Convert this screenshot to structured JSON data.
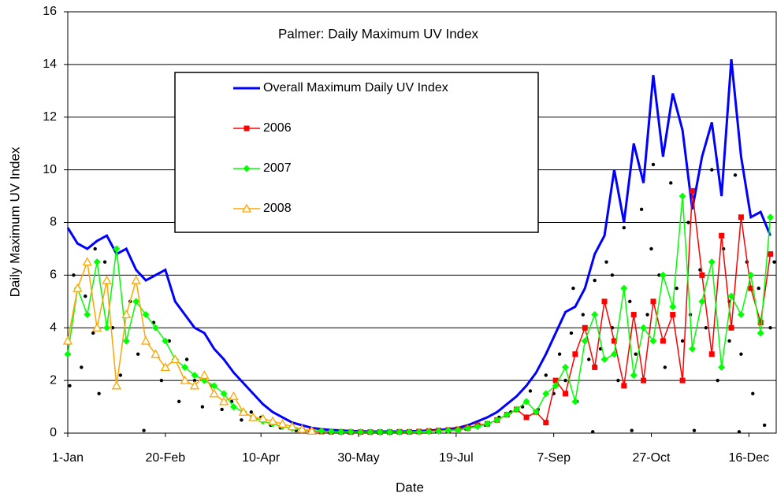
{
  "chart_data": {
    "type": "line",
    "title": "Palmer: Daily Maximum UV Index",
    "xlabel": "Date",
    "ylabel": "Daily Maximum UV Index",
    "xlim": [
      1,
      364
    ],
    "ylim": [
      0,
      16
    ],
    "xticks": [
      {
        "value": 1,
        "label": "1-Jan"
      },
      {
        "value": 51,
        "label": "20-Feb"
      },
      {
        "value": 100,
        "label": "10-Apr"
      },
      {
        "value": 150,
        "label": "30-May"
      },
      {
        "value": 200,
        "label": "19-Jul"
      },
      {
        "value": 250,
        "label": "7-Sep"
      },
      {
        "value": 300,
        "label": "27-Oct"
      },
      {
        "value": 350,
        "label": "16-Dec"
      }
    ],
    "yticks": [
      0,
      2,
      4,
      6,
      8,
      10,
      12,
      14,
      16
    ],
    "grid": true,
    "x": [
      1,
      6,
      11,
      16,
      21,
      26,
      31,
      36,
      41,
      46,
      51,
      56,
      61,
      66,
      71,
      76,
      81,
      86,
      91,
      96,
      101,
      106,
      111,
      116,
      121,
      126,
      131,
      136,
      141,
      146,
      151,
      156,
      161,
      166,
      171,
      176,
      181,
      186,
      191,
      196,
      201,
      206,
      211,
      216,
      221,
      226,
      231,
      236,
      241,
      246,
      251,
      256,
      261,
      266,
      271,
      276,
      281,
      286,
      291,
      296,
      301,
      306,
      311,
      316,
      321,
      326,
      331,
      336,
      341,
      346,
      351,
      356,
      361
    ],
    "series": [
      {
        "name": "Overall Maximum Daily UV Index",
        "color": "#0000ff",
        "marker": "none",
        "values": [
          7.8,
          7.2,
          7.0,
          7.3,
          7.5,
          6.8,
          7.0,
          6.2,
          5.8,
          6.0,
          6.2,
          5.0,
          4.5,
          4.0,
          3.8,
          3.2,
          2.8,
          2.3,
          1.9,
          1.5,
          1.1,
          0.8,
          0.6,
          0.4,
          0.3,
          0.2,
          0.15,
          0.12,
          0.1,
          0.08,
          0.07,
          0.06,
          0.06,
          0.06,
          0.06,
          0.07,
          0.08,
          0.1,
          0.12,
          0.15,
          0.2,
          0.3,
          0.45,
          0.6,
          0.8,
          1.1,
          1.4,
          1.8,
          2.3,
          3.0,
          3.8,
          4.6,
          4.8,
          5.5,
          6.8,
          7.5,
          10.0,
          8.0,
          11.0,
          9.5,
          13.6,
          10.5,
          12.9,
          11.5,
          8.5,
          10.5,
          11.8,
          9.0,
          14.2,
          10.5,
          8.2,
          8.4,
          7.5
        ]
      },
      {
        "name": "2006",
        "color": "#ff0000",
        "marker": "square",
        "values": [
          null,
          null,
          null,
          null,
          null,
          null,
          null,
          null,
          null,
          null,
          null,
          null,
          null,
          null,
          null,
          null,
          null,
          null,
          null,
          null,
          null,
          null,
          null,
          null,
          0.1,
          0.08,
          0.06,
          0.05,
          0.05,
          0.04,
          0.04,
          0.04,
          0.04,
          0.04,
          0.05,
          0.05,
          0.06,
          0.08,
          0.1,
          0.12,
          0.15,
          0.2,
          0.3,
          0.35,
          0.5,
          0.7,
          0.9,
          0.6,
          0.8,
          0.4,
          2.0,
          1.5,
          3.0,
          4.0,
          2.5,
          5.0,
          3.5,
          1.8,
          4.5,
          2.0,
          5.0,
          3.5,
          4.5,
          2.0,
          9.2,
          6.0,
          3.0,
          7.5,
          4.0,
          8.2,
          5.5,
          4.2,
          6.8
        ]
      },
      {
        "name": "2007",
        "color": "#00ff00",
        "marker": "diamond",
        "values": [
          3.0,
          5.5,
          4.5,
          6.5,
          4.0,
          7.0,
          3.5,
          5.0,
          4.5,
          4.0,
          3.5,
          2.8,
          2.5,
          2.2,
          2.0,
          1.8,
          1.5,
          1.0,
          0.8,
          0.6,
          0.45,
          0.35,
          0.25,
          0.18,
          0.12,
          0.1,
          0.08,
          0.06,
          0.05,
          0.05,
          0.04,
          0.04,
          0.04,
          0.04,
          0.04,
          0.05,
          0.05,
          0.06,
          0.08,
          0.1,
          0.12,
          0.18,
          0.25,
          0.35,
          0.5,
          0.7,
          0.9,
          1.2,
          0.8,
          1.5,
          1.8,
          2.5,
          1.2,
          3.5,
          4.5,
          2.8,
          3.0,
          5.5,
          2.2,
          4.0,
          3.5,
          6.0,
          4.8,
          9.0,
          3.2,
          5.0,
          6.5,
          2.5,
          5.2,
          4.5,
          6.0,
          3.8,
          8.2
        ]
      },
      {
        "name": "2008",
        "color": "#ffa500",
        "marker": "triangle",
        "values": [
          3.5,
          5.5,
          6.5,
          4.0,
          5.8,
          1.8,
          4.5,
          5.8,
          3.5,
          3.0,
          2.5,
          2.8,
          2.0,
          1.8,
          2.2,
          1.5,
          1.2,
          1.4,
          0.8,
          0.6,
          0.55,
          0.45,
          0.35,
          0.25,
          0.15,
          0.08,
          null,
          null,
          null,
          null,
          null,
          null,
          null,
          null,
          null,
          null,
          null,
          null,
          null,
          null,
          null,
          null,
          null,
          null,
          null,
          null,
          null,
          null,
          null,
          null,
          null,
          null,
          null,
          null,
          null,
          null,
          null,
          null,
          null,
          null,
          null,
          null,
          null,
          null,
          null,
          null,
          null,
          null,
          null,
          null,
          null,
          null,
          null
        ]
      },
      {
        "color": "#000000",
        "marker": "dot",
        "x": [
          2,
          4,
          8,
          10,
          14,
          17,
          20,
          24,
          28,
          33,
          37,
          40,
          45,
          49,
          53,
          58,
          62,
          66,
          70,
          75,
          80,
          85,
          90,
          95,
          100,
          105,
          110,
          118,
          125,
          135,
          145,
          160,
          175,
          190,
          205,
          215,
          222,
          228,
          234,
          238,
          242,
          246,
          250,
          253,
          256,
          259,
          262,
          265,
          268,
          271,
          274,
          277,
          280,
          283,
          286,
          289,
          292,
          295,
          298,
          301,
          304,
          307,
          310,
          313,
          316,
          319,
          322,
          325,
          328,
          331,
          334,
          337,
          340,
          343,
          346,
          349,
          352,
          355,
          358,
          361,
          363,
          270,
          290,
          345,
          300,
          320,
          340,
          260,
          280,
          15
        ],
        "values": [
          1.8,
          6.0,
          2.5,
          5.2,
          3.8,
          1.5,
          6.5,
          4.0,
          2.2,
          5.0,
          3.0,
          0.1,
          4.2,
          2.0,
          3.5,
          1.2,
          2.8,
          2.0,
          1.0,
          1.8,
          0.9,
          1.2,
          0.5,
          0.8,
          0.6,
          0.3,
          0.2,
          0.1,
          0.05,
          0.03,
          0.02,
          0.02,
          0.03,
          0.05,
          0.15,
          0.3,
          0.6,
          0.8,
          1.0,
          1.6,
          0.9,
          2.2,
          1.5,
          3.0,
          2.0,
          3.8,
          1.2,
          4.5,
          2.8,
          5.8,
          3.2,
          6.5,
          4.0,
          2.0,
          7.8,
          5.0,
          3.0,
          8.5,
          4.5,
          10.2,
          6.0,
          2.5,
          9.5,
          5.5,
          3.5,
          8.0,
          0.1,
          6.2,
          4.0,
          10.0,
          2.0,
          7.0,
          5.0,
          9.8,
          3.0,
          6.5,
          1.5,
          5.5,
          0.3,
          4.0,
          6.5,
          0.05,
          0.1,
          0.05,
          7.0,
          4.5,
          3.5,
          5.5,
          6.0,
          7.0
        ]
      }
    ]
  }
}
